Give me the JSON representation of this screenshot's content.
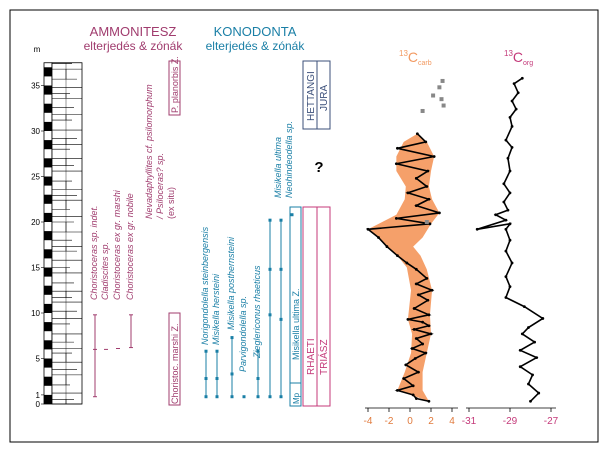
{
  "colors": {
    "ammonite": "#a03c6e",
    "conodont": "#1a7fa6",
    "pink": "#c43a7a",
    "carb_band": "#f5a06a",
    "carb_label": "#f29a62",
    "orange_axis": "#e07a3c",
    "jura": "#3b4f7a",
    "black": "#000000",
    "grey": "#888888"
  },
  "headings": {
    "ammonite_title": "AMMONITESZ",
    "ammonite_sub": "elterjedés & zónák",
    "conodont_title": "KONODONTA",
    "conodont_sub": "elterjedés & zónák"
  },
  "depth_axis": {
    "unit": "m",
    "ticks": [
      "0",
      "1",
      "5",
      "10",
      "15",
      "20",
      "25",
      "30",
      "35"
    ]
  },
  "ammonite_taxa": [
    "Choristoceras sp. indet.",
    "Cladiscites sp.",
    "Choristoceras ex gr. marshi",
    "Choristoceras ex gr. nobile",
    "Nevadaphyllites cf. psilomorphum",
    "/ Psiloceras? sp.",
    "(ex situ)"
  ],
  "conodont_taxa": [
    "Norigondolella steinbergensis",
    "Misikella hersteini",
    "Misikella posthernsteini",
    "Parvigondolella sp.",
    "Zieglericonus rhaeticus",
    "Misikella ultima",
    "Neohindeodella sp."
  ],
  "zones": {
    "ammonite_upper": "P. planorbis Z.",
    "ammonite_lower": "Choristoc. marshi Z.",
    "conodont_main": "Misikella ultima Z.",
    "conodont_small": "Mp",
    "question": "?"
  },
  "chrono": {
    "stage_upper": "HETTANGI",
    "system_upper": "JURA",
    "stage_lower": "RHAETI",
    "system_lower": "TRIÁSZ"
  },
  "isotopes": {
    "carb_label_prefix": "13",
    "carb_label_main": "C",
    "carb_label_sub": "carb",
    "org_label_prefix": "13",
    "org_label_main": "C",
    "org_label_sub": "org",
    "carb_ticks": [
      "-4",
      "-2",
      "0",
      "2",
      "4"
    ],
    "org_ticks": [
      "-31",
      "-29",
      "-27"
    ]
  },
  "chart_data": [
    {
      "type": "line",
      "name": "carb",
      "xlim": [
        -4,
        4
      ],
      "ylim": [
        0,
        37
      ],
      "x_ticks": [
        -4,
        -2,
        0,
        2,
        4
      ],
      "y_ticks": [
        0,
        1,
        5,
        10,
        15,
        20,
        25,
        30,
        35
      ],
      "points": [
        [
          1.8,
          0.3
        ],
        [
          0.6,
          0.6
        ],
        [
          0.3,
          1.0
        ],
        [
          -1.2,
          1.5
        ],
        [
          0.3,
          2.0
        ],
        [
          -0.6,
          2.8
        ],
        [
          0.8,
          3.5
        ],
        [
          -0.4,
          4.3
        ],
        [
          0.5,
          5.0
        ],
        [
          1.5,
          5.6
        ],
        [
          0.2,
          6.1
        ],
        [
          1.2,
          6.6
        ],
        [
          0.6,
          7.2
        ],
        [
          2.0,
          7.7
        ],
        [
          0.4,
          8.2
        ],
        [
          1.8,
          8.6
        ],
        [
          1.2,
          9.0
        ],
        [
          -0.2,
          9.3
        ],
        [
          1.8,
          9.8
        ],
        [
          0.4,
          10.5
        ],
        [
          1.7,
          11.4
        ],
        [
          0.8,
          12.0
        ],
        [
          2.1,
          12.5
        ],
        [
          0.6,
          13.2
        ],
        [
          1.6,
          13.8
        ],
        [
          0.6,
          14.8
        ],
        [
          -0.3,
          15.5
        ],
        [
          -1.2,
          16.3
        ],
        [
          -2.2,
          17.3
        ],
        [
          -3.0,
          18.3
        ],
        [
          -4.0,
          19.2
        ],
        [
          1.9,
          19.8
        ],
        [
          -1.3,
          20.4
        ],
        [
          2.8,
          21.0
        ],
        [
          0.6,
          21.8
        ],
        [
          1.8,
          22.5
        ],
        [
          -0.2,
          23.2
        ],
        [
          1.6,
          23.9
        ],
        [
          0.6,
          24.8
        ],
        [
          1.7,
          25.6
        ],
        [
          -1.3,
          26.4
        ],
        [
          2.3,
          27.2
        ],
        [
          -1.2,
          28.1
        ],
        [
          1.5,
          28.8
        ],
        [
          0.7,
          29.7
        ]
      ],
      "band_right": [
        [
          1.8,
          0.3
        ],
        [
          1.2,
          1.5
        ],
        [
          1.2,
          3.5
        ],
        [
          1.6,
          5.6
        ],
        [
          2.0,
          7.7
        ],
        [
          1.9,
          9.8
        ],
        [
          2.1,
          12.5
        ],
        [
          1.6,
          14.8
        ],
        [
          1.0,
          16.3
        ],
        [
          0.3,
          17.3
        ],
        [
          1.2,
          18.3
        ],
        [
          2.0,
          19.8
        ],
        [
          2.8,
          21.0
        ],
        [
          2.1,
          22.5
        ],
        [
          1.8,
          23.9
        ],
        [
          2.0,
          25.6
        ],
        [
          2.3,
          27.2
        ],
        [
          1.6,
          28.8
        ],
        [
          0.7,
          29.7
        ]
      ],
      "band_left": [
        [
          0.7,
          29.7
        ],
        [
          -0.6,
          28.8
        ],
        [
          -1.3,
          27.2
        ],
        [
          -1.3,
          25.6
        ],
        [
          -0.4,
          23.9
        ],
        [
          -0.5,
          22.5
        ],
        [
          -1.3,
          20.8
        ],
        [
          -4.0,
          19.2
        ],
        [
          -3.0,
          18.3
        ],
        [
          -2.2,
          17.3
        ],
        [
          -1.2,
          16.3
        ],
        [
          -0.3,
          15.0
        ],
        [
          0.1,
          12.5
        ],
        [
          -0.2,
          9.3
        ],
        [
          0.2,
          7.7
        ],
        [
          0.1,
          5.6
        ],
        [
          -0.5,
          3.5
        ],
        [
          -1.2,
          1.5
        ],
        [
          1.8,
          0.3
        ]
      ],
      "outliers": [
        [
          3.1,
          35.5
        ],
        [
          2.8,
          34.8
        ],
        [
          2.2,
          33.9
        ],
        [
          3.0,
          33.5
        ],
        [
          3.2,
          32.8
        ],
        [
          1.2,
          32.2
        ],
        [
          1.6,
          20.0
        ]
      ]
    },
    {
      "type": "line",
      "name": "org",
      "xlim": [
        -31,
        -27
      ],
      "ylim": [
        0,
        37
      ],
      "x_ticks": [
        -31,
        -29,
        -27
      ],
      "points": [
        [
          -28.0,
          0.3
        ],
        [
          -27.6,
          1.2
        ],
        [
          -28.1,
          2.2
        ],
        [
          -27.9,
          3.2
        ],
        [
          -28.5,
          4.1
        ],
        [
          -27.7,
          5.1
        ],
        [
          -28.5,
          5.9
        ],
        [
          -27.8,
          6.8
        ],
        [
          -28.4,
          7.7
        ],
        [
          -28.1,
          8.4
        ],
        [
          -27.4,
          9.4
        ],
        [
          -28.3,
          10.7
        ],
        [
          -29.2,
          11.7
        ],
        [
          -29.0,
          12.9
        ],
        [
          -29.2,
          14.0
        ],
        [
          -28.9,
          15.5
        ],
        [
          -29.2,
          16.8
        ],
        [
          -29.0,
          18.0
        ],
        [
          -29.2,
          19.2
        ],
        [
          -29.0,
          19.8
        ],
        [
          -30.6,
          19.2
        ],
        [
          -29.2,
          20.2
        ],
        [
          -29.7,
          20.8
        ],
        [
          -29.1,
          21.3
        ],
        [
          -29.3,
          22.2
        ],
        [
          -29.0,
          23.2
        ],
        [
          -29.3,
          24.2
        ],
        [
          -29.0,
          25.6
        ],
        [
          -29.1,
          27.0
        ],
        [
          -28.9,
          28.2
        ],
        [
          -29.2,
          29.0
        ],
        [
          -28.9,
          30.5
        ],
        [
          -29.0,
          31.5
        ],
        [
          -28.7,
          32.4
        ],
        [
          -28.9,
          33.3
        ],
        [
          -28.6,
          34.2
        ],
        [
          -28.8,
          35.2
        ],
        [
          -28.4,
          35.8
        ]
      ]
    }
  ]
}
